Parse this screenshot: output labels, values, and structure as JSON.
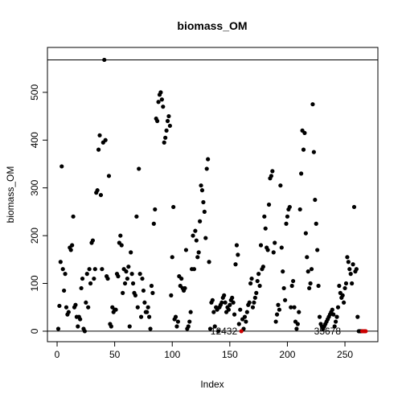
{
  "chart_data": {
    "type": "scatter",
    "title": "biomass_OM",
    "xlabel": "Index",
    "ylabel": "biomass_OM",
    "xlim": [
      -8.4,
      278.6
    ],
    "ylim": [
      -22,
      594
    ],
    "xticks": [
      0,
      50,
      100,
      150,
      200,
      250
    ],
    "yticks": [
      0,
      100,
      200,
      300,
      400,
      500
    ],
    "hlines": [
      0,
      568
    ],
    "series": [
      {
        "color": "#000000",
        "x": [
          1,
          2,
          3,
          4,
          5,
          6,
          7,
          8,
          9,
          10,
          11,
          12,
          13,
          14,
          15,
          16,
          17,
          18,
          19,
          20,
          21,
          22,
          23,
          24,
          25,
          26,
          27,
          28,
          29,
          30,
          31,
          32,
          33,
          34,
          35,
          36,
          37,
          38,
          39,
          40,
          41,
          42,
          43,
          44,
          45,
          46,
          47,
          48,
          49,
          50,
          51,
          52,
          53,
          54,
          55,
          56,
          57,
          58,
          59,
          60,
          61,
          62,
          63,
          64,
          65,
          66,
          67,
          68,
          69,
          70,
          71,
          72,
          73,
          74,
          75,
          76,
          77,
          78,
          79,
          80,
          81,
          82,
          83,
          84,
          85,
          86,
          87,
          88,
          89,
          90,
          91,
          92,
          93,
          94,
          95,
          96,
          97,
          98,
          99,
          100,
          101,
          102,
          103,
          104,
          105,
          106,
          107,
          108,
          109,
          110,
          111,
          112,
          113,
          114,
          115,
          116,
          117,
          118,
          119,
          120,
          121,
          122,
          123,
          124,
          125,
          126,
          127,
          128,
          129,
          130,
          131,
          132,
          133,
          134,
          135,
          136,
          137,
          138,
          139,
          140,
          141,
          142,
          143,
          144,
          145,
          146,
          147,
          148,
          149,
          150,
          151,
          152,
          153,
          154,
          155,
          156,
          157,
          158,
          159,
          161,
          162,
          163,
          164,
          165,
          166,
          167,
          168,
          169,
          170,
          171,
          172,
          173,
          174,
          175,
          176,
          177,
          178,
          179,
          180,
          181,
          182,
          183,
          184,
          185,
          186,
          187,
          188,
          189,
          190,
          191,
          192,
          193,
          194,
          195,
          196,
          197,
          198,
          199,
          200,
          201,
          202,
          203,
          204,
          205,
          206,
          207,
          208,
          209,
          210,
          211,
          212,
          213,
          214,
          215,
          216,
          217,
          218,
          219,
          220,
          221,
          222,
          223,
          224,
          225,
          226,
          227,
          228,
          229,
          230,
          231,
          232,
          233,
          234,
          235,
          236,
          237,
          238,
          239,
          240,
          241,
          242,
          243,
          244,
          245,
          246,
          247,
          248,
          249,
          250,
          251,
          252,
          253,
          254,
          255,
          256,
          257,
          258,
          259,
          260,
          261,
          262,
          263,
          264
        ],
        "values": [
          5,
          53,
          145,
          345,
          130,
          85,
          120,
          50,
          35,
          40,
          175,
          170,
          180,
          240,
          50,
          55,
          30,
          10,
          30,
          25,
          90,
          110,
          5,
          0,
          60,
          120,
          50,
          130,
          100,
          185,
          190,
          110,
          130,
          290,
          295,
          380,
          410,
          285,
          130,
          395,
          568,
          400,
          115,
          110,
          325,
          15,
          10,
          50,
          40,
          45,
          45,
          120,
          115,
          185,
          200,
          180,
          80,
          130,
          100,
          125,
          110,
          135,
          10,
          165,
          120,
          100,
          80,
          75,
          240,
          50,
          340,
          120,
          30,
          110,
          85,
          60,
          40,
          40,
          50,
          30,
          5,
          95,
          80,
          225,
          255,
          445,
          440,
          480,
          495,
          500,
          485,
          470,
          395,
          405,
          420,
          440,
          450,
          430,
          75,
          155,
          260,
          25,
          30,
          10,
          20,
          115,
          95,
          110,
          90,
          85,
          90,
          170,
          5,
          10,
          20,
          40,
          130,
          200,
          130,
          210,
          190,
          155,
          165,
          230,
          305,
          295,
          270,
          250,
          195,
          340,
          360,
          145,
          5,
          60,
          65,
          40,
          10,
          50,
          45,
          0,
          50,
          55,
          60,
          70,
          75,
          60,
          40,
          50,
          45,
          55,
          65,
          70,
          60,
          35,
          140,
          180,
          160,
          15,
          45,
          25,
          5,
          30,
          20,
          40,
          55,
          60,
          100,
          110,
          50,
          60,
          70,
          80,
          105,
          120,
          95,
          180,
          130,
          135,
          240,
          215,
          175,
          170,
          265,
          320,
          325,
          335,
          165,
          185,
          20,
          35,
          55,
          45,
          305,
          175,
          125,
          90,
          65,
          225,
          240,
          255,
          260,
          50,
          95,
          105,
          50,
          20,
          5,
          15,
          40,
          255,
          330,
          420,
          380,
          415,
          205,
          155,
          125,
          90,
          100,
          130,
          475,
          375,
          275,
          225,
          170,
          95,
          30,
          15,
          10,
          5,
          10,
          15,
          20,
          25,
          30,
          35,
          40,
          45,
          35,
          10,
          20,
          30,
          50,
          95,
          80,
          70,
          75,
          60,
          90,
          100,
          155,
          145,
          130,
          120,
          100,
          140,
          260,
          125,
          130,
          30,
          0,
          0,
          0
        ]
      },
      {
        "color": "#cc0000",
        "x": [
          160,
          265,
          266,
          267,
          268
        ],
        "values": [
          0,
          0,
          0,
          0,
          0
        ]
      }
    ],
    "annotations": [
      {
        "text": "12432",
        "x": 160,
        "y": 0
      },
      {
        "text": "35678",
        "x": 250,
        "y": 0
      }
    ]
  }
}
